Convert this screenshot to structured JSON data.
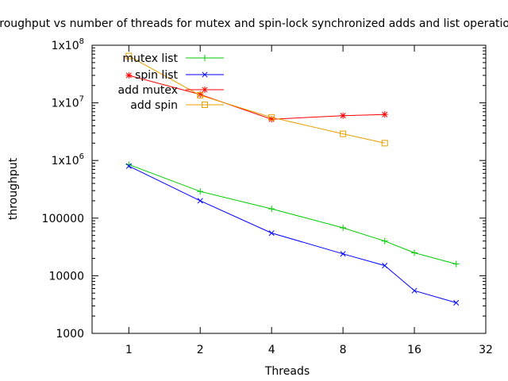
{
  "chart_data": {
    "type": "line",
    "title": "Throughput vs number of threads for mutex and spin-lock synchronized adds and list operations",
    "xlabel": "Threads",
    "ylabel": "throughput",
    "x_scale": "log2",
    "y_scale": "log10",
    "xlim": [
      0.7,
      32
    ],
    "ylim": [
      1000,
      100000000
    ],
    "x_ticks": [
      1,
      2,
      4,
      8,
      16,
      32
    ],
    "x_tick_labels": [
      "1",
      "2",
      "4",
      "8",
      "16",
      "32"
    ],
    "y_ticks": [
      1000,
      10000,
      100000,
      1000000,
      10000000,
      100000000
    ],
    "y_tick_labels": [
      "1000",
      "10000",
      "100000",
      "1x10",
      "1x10",
      "1x10"
    ],
    "y_tick_exponents": [
      "",
      "",
      "",
      "6",
      "7",
      "8"
    ],
    "grid": false,
    "legend_position": "top-left",
    "series": [
      {
        "name": "mutex list",
        "color": "#00cc00",
        "marker": "plus",
        "x": [
          1,
          2,
          4,
          8,
          12,
          16,
          24
        ],
        "y": [
          850000,
          290000,
          145000,
          68000,
          40000,
          25000,
          16000
        ]
      },
      {
        "name": "spin list",
        "color": "#0000ff",
        "marker": "cross",
        "x": [
          1,
          2,
          4,
          8,
          12,
          16,
          24
        ],
        "y": [
          800000,
          200000,
          55000,
          24000,
          15000,
          5500,
          3400
        ]
      },
      {
        "name": "add mutex",
        "color": "#ff0000",
        "marker": "star",
        "x": [
          1,
          2,
          4,
          8,
          12
        ],
        "y": [
          30000000,
          14000000,
          5200000,
          6000000,
          6300000
        ]
      },
      {
        "name": "add spin",
        "color": "#e8a000",
        "marker": "square",
        "x": [
          1,
          2,
          4,
          8,
          12
        ],
        "y": [
          65000000,
          13500000,
          5600000,
          2900000,
          2000000
        ]
      }
    ]
  }
}
